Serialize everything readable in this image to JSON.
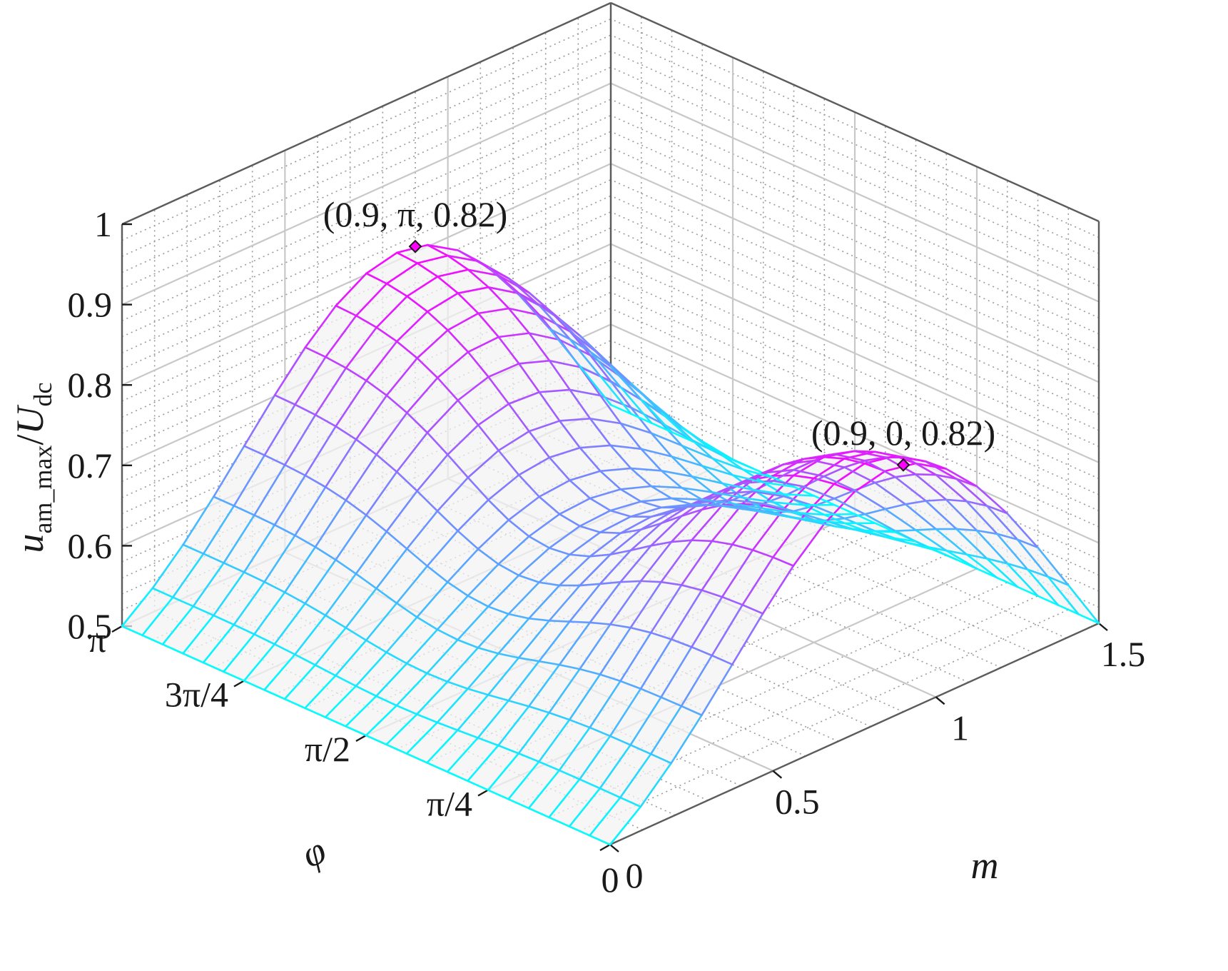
{
  "chart_data": {
    "type": "surface",
    "title": "",
    "xlabel": "m",
    "ylabel": "φ",
    "zlabel": {
      "base": "u",
      "base_sub": "am_max",
      "sep": "/",
      "divisor": "U",
      "divisor_sub": "dc"
    },
    "xlim": [
      0,
      1.5
    ],
    "ylim": [
      0,
      3.14159
    ],
    "zlim": [
      0.5,
      1.0
    ],
    "x_ticks": [
      0,
      0.5,
      1,
      1.5
    ],
    "x_tick_labels": [
      "0",
      "0.5",
      "1",
      "1.5"
    ],
    "y_ticks": [
      0.7854,
      1.5708,
      2.3562,
      3.14159
    ],
    "y_tick_labels": [
      "π/4",
      "π/2",
      "3π/4",
      "π"
    ],
    "z_ticks": [
      0.5,
      0.6,
      0.7,
      0.8,
      0.9,
      1.0
    ],
    "z_tick_labels": [
      "0.5",
      "0.6",
      "0.7",
      "0.8",
      "0.9",
      "1"
    ],
    "grid": true,
    "colormap": [
      "#00ffff",
      "#ff00ff"
    ],
    "edge_colors": {
      "low": "#00ffff",
      "high": "#ff00ff"
    },
    "face_color": "#f2f2f2",
    "mesh_resolution": {
      "m_steps": 16,
      "phi_steps": 24
    },
    "annotations": [
      {
        "m": 0.9,
        "phi": 3.14159,
        "z": 0.82,
        "text": "(0.9, π, 0.82)",
        "marker_color": "#ff00ff"
      },
      {
        "m": 0.9,
        "phi": 0,
        "z": 0.82,
        "text": "(0.9, 0, 0.82)",
        "marker_color": "#ff00ff"
      }
    ]
  }
}
